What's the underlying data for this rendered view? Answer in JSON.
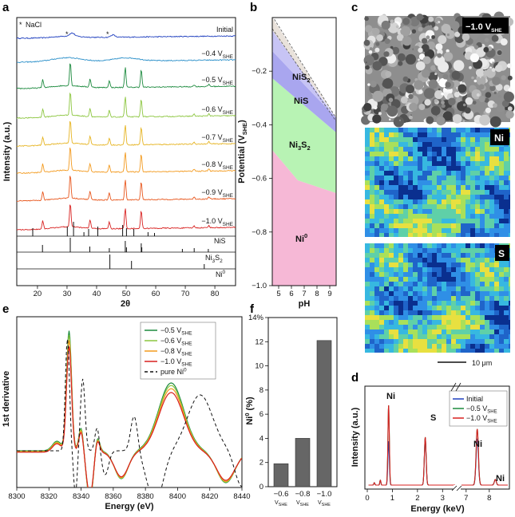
{
  "panel_labels": [
    "a",
    "b",
    "c",
    "d",
    "e",
    "f"
  ],
  "a": {
    "legend_nacl": "NaCl",
    "spectra": [
      {
        "label": "Initial",
        "sub": "",
        "color": "#1f3fbf"
      },
      {
        "label": "−0.4 V",
        "sub": "SHE",
        "color": "#2a8fc9"
      },
      {
        "label": "−0.5 V",
        "sub": "SHE",
        "color": "#1c8a3e"
      },
      {
        "label": "−0.6 V",
        "sub": "SHE",
        "color": "#8cc63f"
      },
      {
        "label": "−0.7 V",
        "sub": "SHE",
        "color": "#e6b422"
      },
      {
        "label": "−0.8 V",
        "sub": "SHE",
        "color": "#f39a1e"
      },
      {
        "label": "−0.9 V",
        "sub": "SHE",
        "color": "#e8561c"
      },
      {
        "label": "−1.0 V",
        "sub": "SHE",
        "color": "#d8201f"
      }
    ],
    "refs": [
      {
        "label": "NiS",
        "sub": ""
      },
      {
        "label": "Ni",
        "sub": "3",
        "label2": "S",
        "sub2": "2"
      },
      {
        "label": "Ni",
        "sup": "0"
      }
    ],
    "xlabel": "2θ",
    "ylabel": "Intensity (a.u.)",
    "xticks": [
      "20",
      "30",
      "40",
      "50",
      "60",
      "70",
      "80"
    ]
  },
  "b": {
    "ylabel": "Potential (V",
    "ylabel_sub": "SHE",
    "ylabel_end": ")",
    "xlabel": "pH",
    "yticks": [
      "−0.2",
      "−0.4",
      "−0.6",
      "−0.8",
      "−1.0"
    ],
    "xticks": [
      "5",
      "6",
      "7",
      "8",
      "9"
    ],
    "regions": [
      {
        "label": "NiS",
        "sub": "2",
        "color": "#c7c4f5"
      },
      {
        "label": "NiS",
        "sub": "",
        "color": "#a9a6ef"
      },
      {
        "label": "Ni",
        "sub": "3",
        "label2": "S",
        "sub2": "2",
        "color": "#b8f3b4"
      },
      {
        "label": "Ni",
        "sup": "0",
        "color": "#f6b8d6"
      }
    ]
  },
  "c": {
    "sem_label": "−1.0 V",
    "sem_sub": "SHE",
    "map1_label": "Ni",
    "map2_label": "S",
    "scalebar": "10 μm"
  },
  "d": {
    "xlabel": "Energy (keV)",
    "ylabel": "Intensity (a.u.)",
    "legend": [
      {
        "label": "Initial",
        "sub": "",
        "color": "#1f3fbf"
      },
      {
        "label": "−0.5 V",
        "sub": "SHE",
        "color": "#1c8a3e"
      },
      {
        "label": "−1.0 V",
        "sub": "SHE",
        "color": "#d8201f"
      }
    ],
    "peaks": [
      "Ni",
      "S",
      "Ni",
      "Ni"
    ],
    "xticks": [
      "0",
      "1",
      "2",
      "3",
      "7",
      "8"
    ]
  },
  "e": {
    "xlabel": "Energy (eV)",
    "ylabel": "1st derivative",
    "xticks": [
      "8300",
      "8320",
      "8340",
      "8360",
      "8380",
      "8400",
      "8420",
      "8440"
    ],
    "legend": [
      {
        "label": "−0.5 V",
        "sub": "SHE",
        "color": "#1c8a3e"
      },
      {
        "label": "−0.6 V",
        "sub": "SHE",
        "color": "#8cc63f"
      },
      {
        "label": "−0.8 V",
        "sub": "SHE",
        "color": "#f39a1e"
      },
      {
        "label": "−1.0 V",
        "sub": "SHE",
        "color": "#d8201f"
      },
      {
        "label": "pure Ni",
        "sup": "0",
        "color": "#111111"
      }
    ]
  },
  "f": {
    "ylabel": "Ni",
    "ylabel_sup": "0",
    "ylabel_end": " (%)",
    "yticks": [
      "0",
      "2",
      "4",
      "6",
      "8",
      "10",
      "12",
      "14%"
    ],
    "chart_data": {
      "type": "bar",
      "categories": [
        "−0.6",
        "−0.8",
        "−1.0"
      ],
      "category_sub": "SHE",
      "values": [
        1.9,
        4.0,
        12.1
      ],
      "ylabel": "Ni0 (%)",
      "ylim": [
        0,
        14
      ]
    }
  }
}
